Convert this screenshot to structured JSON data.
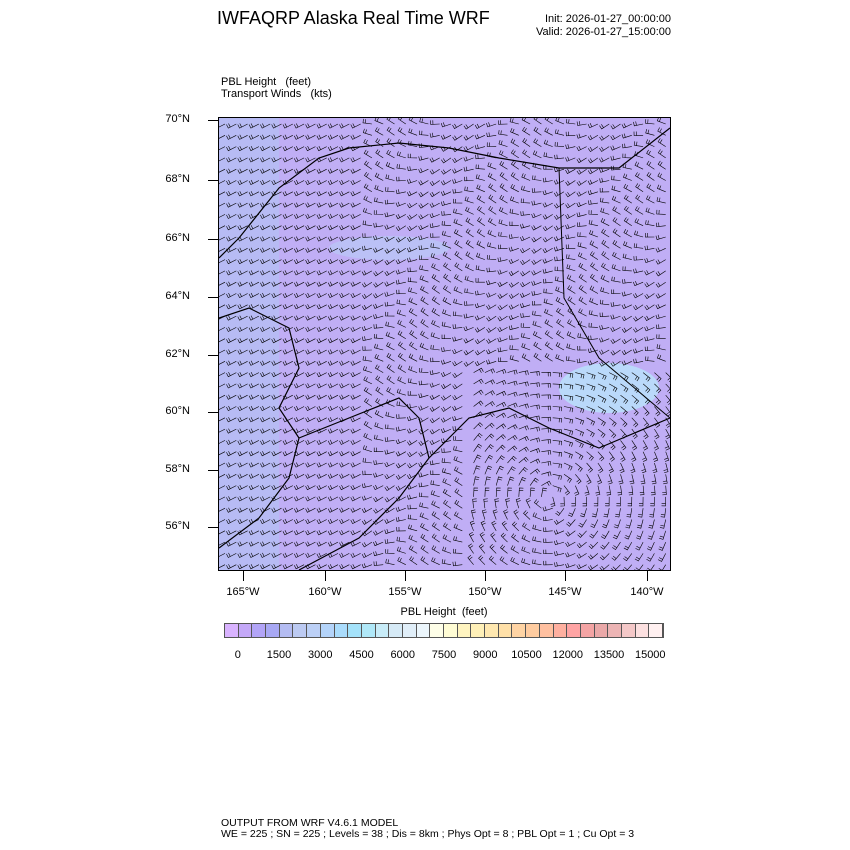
{
  "header": {
    "title": "IWFAQRP Alaska Real Time WRF",
    "init": "Init: 2026-01-27_00:00:00",
    "valid": "Valid: 2026-01-27_15:00:00"
  },
  "fields": {
    "line1": "PBL Height   (feet)",
    "line2": "Transport Winds   (kts)"
  },
  "axes": {
    "lat_labels": [
      "70°N",
      "68°N",
      "66°N",
      "64°N",
      "62°N",
      "60°N",
      "58°N",
      "56°N"
    ],
    "lon_labels": [
      "165°W",
      "160°W",
      "155°W",
      "150°W",
      "145°W",
      "140°W"
    ]
  },
  "colorbar": {
    "title": "PBL Height  (feet)",
    "labels": [
      "0",
      "1500",
      "3000",
      "4500",
      "6000",
      "7500",
      "9000",
      "10500",
      "12000",
      "13500",
      "15000"
    ],
    "colors": [
      "#d9b3ff",
      "#c4a8f8",
      "#b2a4f7",
      "#a8a8f4",
      "#b4bcf2",
      "#bccaf2",
      "#bcd0f6",
      "#b4d4fa",
      "#aadcfc",
      "#a4e2fa",
      "#b0e8f8",
      "#c8ecf8",
      "#d6eaf6",
      "#e0eef8",
      "#ecf6fc",
      "#fefee8",
      "#fffcd4",
      "#fff4c0",
      "#fff0b8",
      "#ffe8b0",
      "#ffe0a8",
      "#ffd4a4",
      "#ffcca0",
      "#ffc0a0",
      "#ffb0a0",
      "#ffa4a4",
      "#f4a4a4",
      "#eaa8a8",
      "#ecb4b4",
      "#f4c8c8",
      "#fce0e0",
      "#fff0f0"
    ]
  },
  "map": {
    "fill_color": "#c0aef5",
    "light_region_color": "#b8e4fb"
  },
  "footer": {
    "line1": "OUTPUT FROM WRF V4.6.1 MODEL",
    "line2": "WE = 225 ; SN = 225 ; Levels = 38 ; Dis = 8km ; Phys Opt = 8 ; PBL Opt = 1 ; Cu Opt = 3"
  }
}
